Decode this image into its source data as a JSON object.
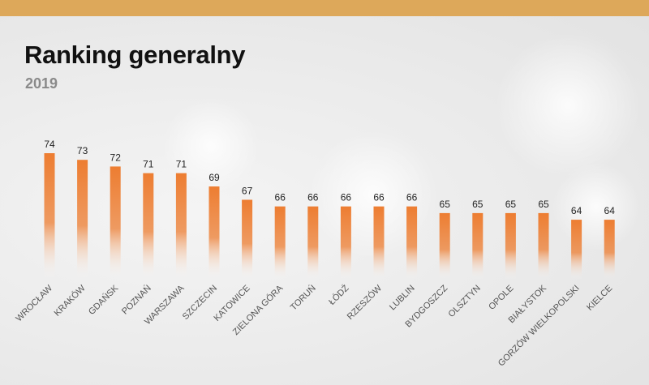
{
  "header": {
    "title": "Ranking generalny",
    "subtitle": "2019"
  },
  "colors": {
    "accent_bar": "#dda85a",
    "bar_top": "#ed7d31",
    "bar_bottom": "#ffffff"
  },
  "chart_data": {
    "type": "bar",
    "title": "Ranking generalny",
    "subtitle": "2019",
    "xlabel": "",
    "ylabel": "",
    "grid": false,
    "categories": [
      "WROCŁAW",
      "KRAKÓW",
      "GDAŃSK",
      "POZNAŃ",
      "WARSZAWA",
      "SZCZECIN",
      "KATOWICE",
      "ZIELONA GÓRA",
      "TORUŃ",
      "ŁÓDŹ",
      "RZESZÓW",
      "LUBLIN",
      "BYDGOSZCZ",
      "OLSZTYN",
      "OPOLE",
      "BIAŁYSTOK",
      "GORZÓW WIELKOPOLSKI",
      "KIELCE"
    ],
    "values": [
      74,
      73,
      72,
      71,
      71,
      69,
      67,
      66,
      66,
      66,
      66,
      66,
      65,
      65,
      65,
      65,
      64,
      64
    ],
    "ylim": [
      55,
      74
    ]
  }
}
